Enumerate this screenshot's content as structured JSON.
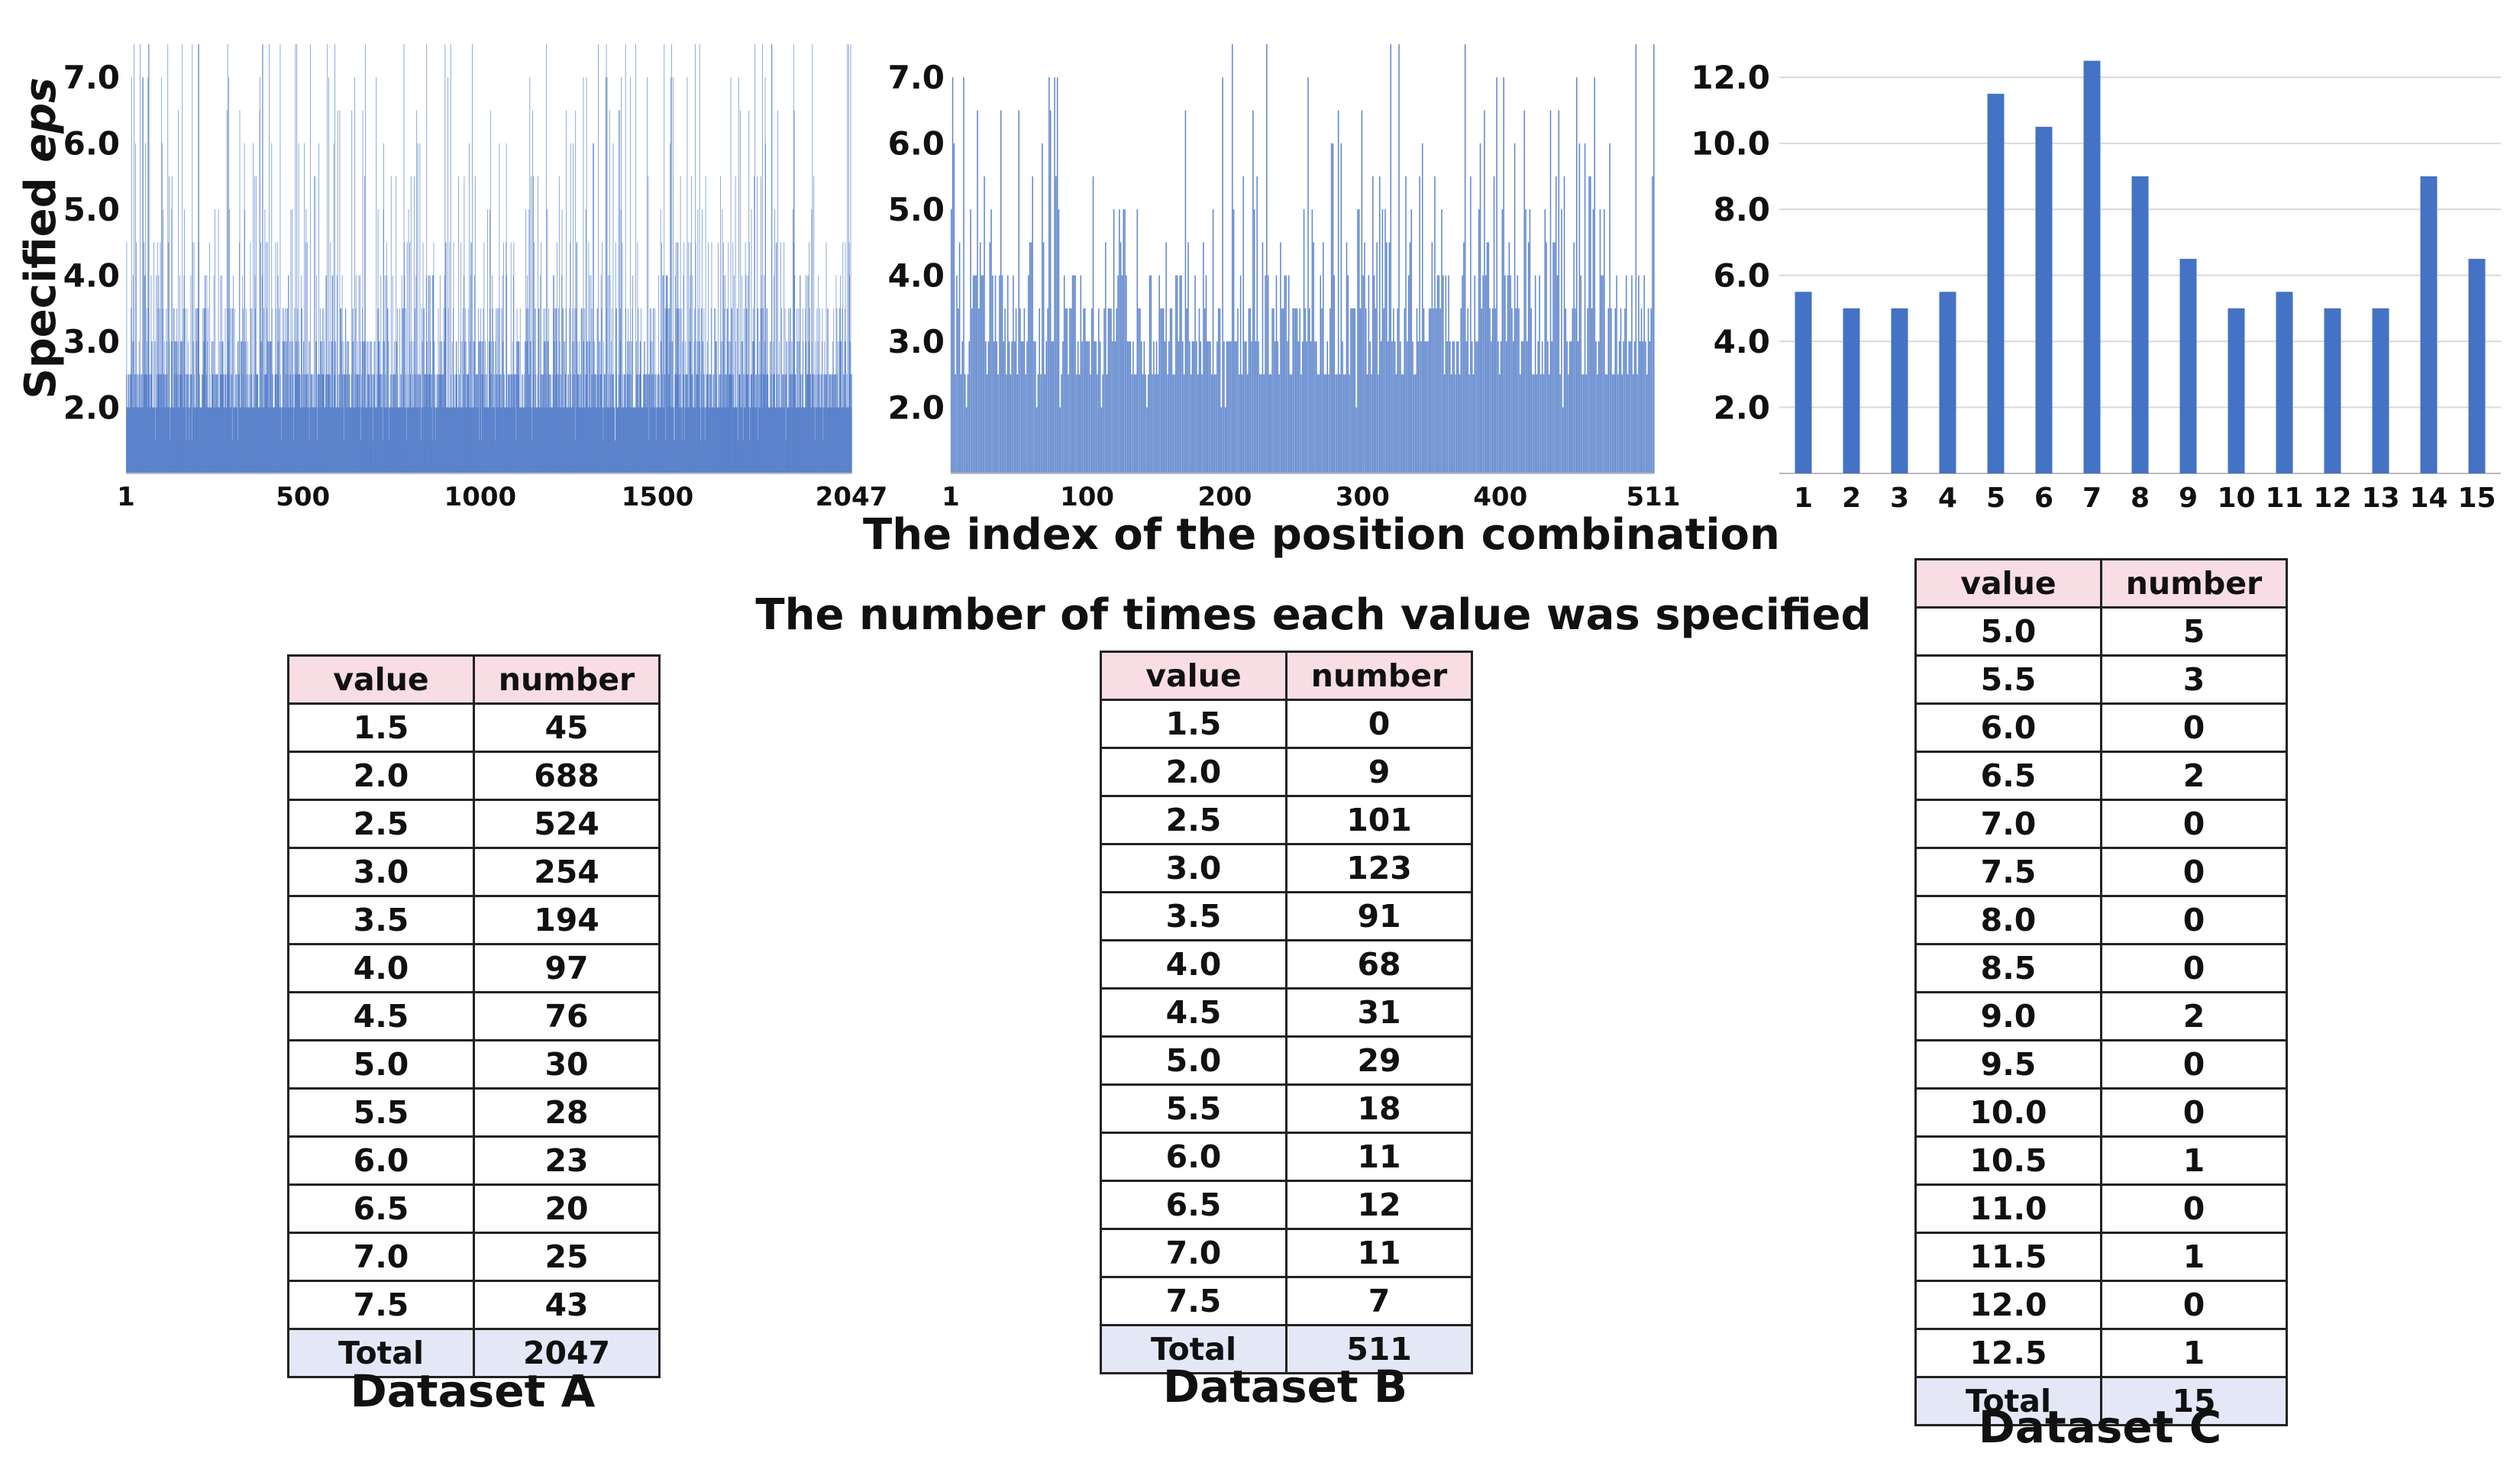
{
  "x_axis_label": "The index of the position combination",
  "y_axis_label_prefix": "Specified",
  "y_axis_label_emph": "eps",
  "table_heading": "The number of times each value was specified",
  "columns": [
    "value",
    "number"
  ],
  "total_label": "Total",
  "colors": {
    "bar": "#4472c4",
    "header": "#f8dde5",
    "total": "#e4e7f5"
  },
  "chart_data": [
    {
      "type": "bar",
      "name": "Dataset A",
      "x_range": [
        1,
        2047
      ],
      "x_ticks": [
        "1",
        "500",
        "1000",
        "1500",
        "2047"
      ],
      "y_ticks": [
        "2.0",
        "3.0",
        "4.0",
        "5.0",
        "6.0",
        "7.0"
      ],
      "ylim": [
        1.0,
        7.5
      ],
      "eps_distribution": {
        "values": [
          1.5,
          2.0,
          2.5,
          3.0,
          3.5,
          4.0,
          4.5,
          5.0,
          5.5,
          6.0,
          6.5,
          7.0,
          7.5
        ],
        "counts": [
          45,
          688,
          524,
          254,
          194,
          97,
          76,
          30,
          28,
          23,
          20,
          25,
          43
        ]
      },
      "table": {
        "rows": [
          [
            "1.5",
            "45"
          ],
          [
            "2.0",
            "688"
          ],
          [
            "2.5",
            "524"
          ],
          [
            "3.0",
            "254"
          ],
          [
            "3.5",
            "194"
          ],
          [
            "4.0",
            "97"
          ],
          [
            "4.5",
            "76"
          ],
          [
            "5.0",
            "30"
          ],
          [
            "5.5",
            "28"
          ],
          [
            "6.0",
            "23"
          ],
          [
            "6.5",
            "20"
          ],
          [
            "7.0",
            "25"
          ],
          [
            "7.5",
            "43"
          ]
        ],
        "total": "2047"
      },
      "caption": "Dataset A"
    },
    {
      "type": "bar",
      "name": "Dataset B",
      "x_range": [
        1,
        511
      ],
      "x_ticks": [
        "1",
        "100",
        "200",
        "300",
        "400",
        "511"
      ],
      "y_ticks": [
        "2.0",
        "3.0",
        "4.0",
        "5.0",
        "6.0",
        "7.0"
      ],
      "ylim": [
        1.0,
        7.5
      ],
      "eps_distribution": {
        "values": [
          1.5,
          2.0,
          2.5,
          3.0,
          3.5,
          4.0,
          4.5,
          5.0,
          5.5,
          6.0,
          6.5,
          7.0,
          7.5
        ],
        "counts": [
          0,
          9,
          101,
          123,
          91,
          68,
          31,
          29,
          18,
          11,
          12,
          11,
          7
        ]
      },
      "table": {
        "rows": [
          [
            "1.5",
            "0"
          ],
          [
            "2.0",
            "9"
          ],
          [
            "2.5",
            "101"
          ],
          [
            "3.0",
            "123"
          ],
          [
            "3.5",
            "91"
          ],
          [
            "4.0",
            "68"
          ],
          [
            "4.5",
            "31"
          ],
          [
            "5.0",
            "29"
          ],
          [
            "5.5",
            "18"
          ],
          [
            "6.0",
            "11"
          ],
          [
            "6.5",
            "12"
          ],
          [
            "7.0",
            "11"
          ],
          [
            "7.5",
            "7"
          ]
        ],
        "total": "511"
      },
      "caption": "Dataset B"
    },
    {
      "type": "bar",
      "name": "Dataset C",
      "categories": [
        "1",
        "2",
        "3",
        "4",
        "5",
        "6",
        "7",
        "8",
        "9",
        "10",
        "11",
        "12",
        "13",
        "14",
        "15"
      ],
      "values": [
        5.5,
        5.0,
        5.0,
        5.5,
        11.5,
        10.5,
        12.5,
        9.0,
        6.5,
        5.0,
        5.5,
        5.0,
        5.0,
        9.0,
        6.5
      ],
      "y_ticks": [
        "2.0",
        "4.0",
        "6.0",
        "8.0",
        "10.0",
        "12.0"
      ],
      "ylim": [
        0,
        13
      ],
      "grid": true,
      "table": {
        "rows": [
          [
            "5.0",
            "5"
          ],
          [
            "5.5",
            "3"
          ],
          [
            "6.0",
            "0"
          ],
          [
            "6.5",
            "2"
          ],
          [
            "7.0",
            "0"
          ],
          [
            "7.5",
            "0"
          ],
          [
            "8.0",
            "0"
          ],
          [
            "8.5",
            "0"
          ],
          [
            "9.0",
            "2"
          ],
          [
            "9.5",
            "0"
          ],
          [
            "10.0",
            "0"
          ],
          [
            "10.5",
            "1"
          ],
          [
            "11.0",
            "0"
          ],
          [
            "11.5",
            "1"
          ],
          [
            "12.0",
            "0"
          ],
          [
            "12.5",
            "1"
          ]
        ],
        "total": "15"
      },
      "caption": "Dataset C"
    }
  ]
}
